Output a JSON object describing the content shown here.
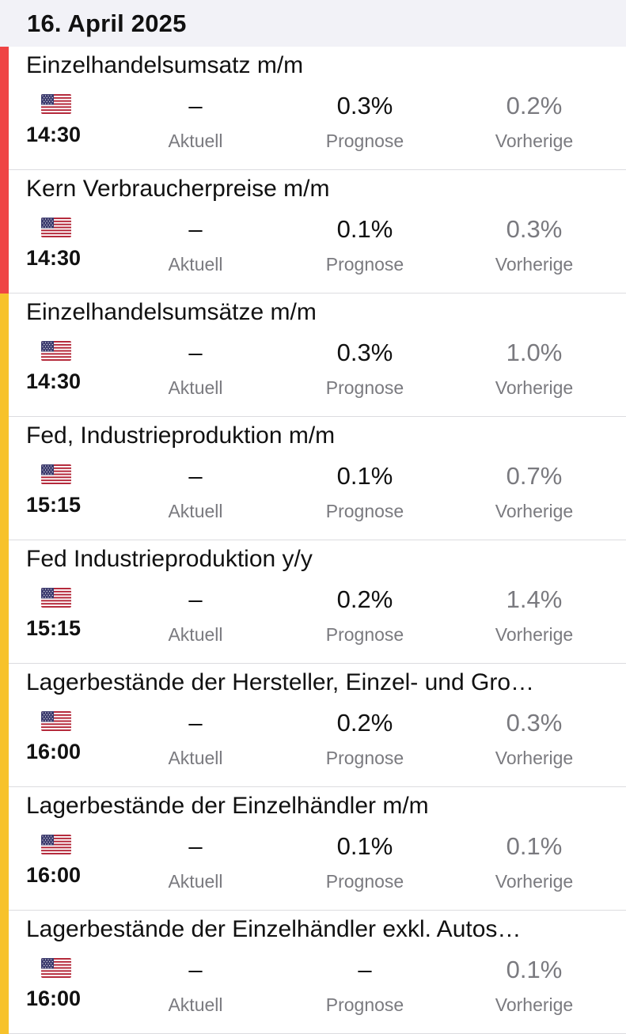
{
  "header": {
    "date": "16. April 2025"
  },
  "labels": {
    "actual": "Aktuell",
    "forecast": "Prognose",
    "previous": "Vorherige"
  },
  "colors": {
    "high_impact": "#ef4444",
    "medium_impact": "#f7c22b",
    "header_bg": "#f2f2f7"
  },
  "events": [
    {
      "title": "Einzelhandelsumsatz m/m",
      "country_flag": "us-flag-icon",
      "time": "14:30",
      "actual": "–",
      "forecast": "0.3%",
      "previous": "0.2%",
      "impact": "high"
    },
    {
      "title": "Kern Verbraucherpreise m/m",
      "country_flag": "us-flag-icon",
      "time": "14:30",
      "actual": "–",
      "forecast": "0.1%",
      "previous": "0.3%",
      "impact": "high"
    },
    {
      "title": "Einzelhandelsumsätze m/m",
      "country_flag": "us-flag-icon",
      "time": "14:30",
      "actual": "–",
      "forecast": "0.3%",
      "previous": "1.0%",
      "impact": "medium"
    },
    {
      "title": "Fed, Industrieproduktion m/m",
      "country_flag": "us-flag-icon",
      "time": "15:15",
      "actual": "–",
      "forecast": "0.1%",
      "previous": "0.7%",
      "impact": "medium"
    },
    {
      "title": "Fed Industrieproduktion y/y",
      "country_flag": "us-flag-icon",
      "time": "15:15",
      "actual": "–",
      "forecast": "0.2%",
      "previous": "1.4%",
      "impact": "medium"
    },
    {
      "title": "Lagerbestände der Hersteller, Einzel- und Gro…",
      "country_flag": "us-flag-icon",
      "time": "16:00",
      "actual": "–",
      "forecast": "0.2%",
      "previous": "0.3%",
      "impact": "medium"
    },
    {
      "title": "Lagerbestände der Einzelhändler m/m",
      "country_flag": "us-flag-icon",
      "time": "16:00",
      "actual": "–",
      "forecast": "0.1%",
      "previous": "0.1%",
      "impact": "medium"
    },
    {
      "title": "Lagerbestände der Einzelhändler exkl. Autos…",
      "country_flag": "us-flag-icon",
      "time": "16:00",
      "actual": "–",
      "forecast": "–",
      "previous": "0.1%",
      "impact": "medium"
    }
  ]
}
